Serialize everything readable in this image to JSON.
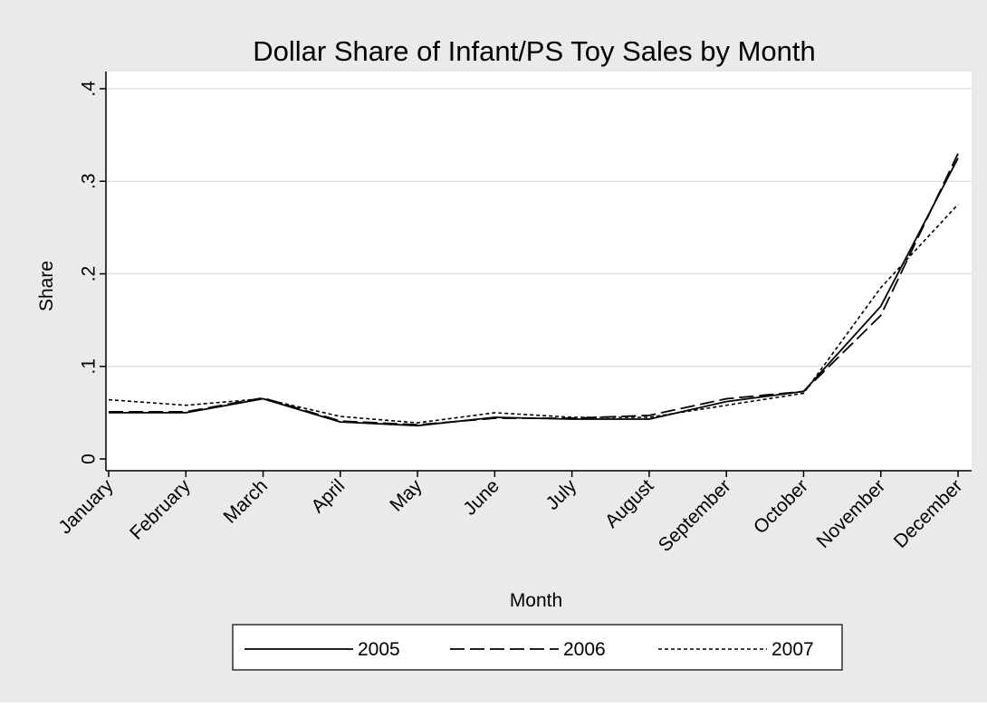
{
  "chart_data": {
    "type": "line",
    "title": "Dollar Share of Infant/PS Toy Sales by Month",
    "xlabel": "Month",
    "ylabel": "Share",
    "categories": [
      "January",
      "February",
      "March",
      "April",
      "May",
      "June",
      "July",
      "August",
      "September",
      "October",
      "November",
      "December"
    ],
    "yticks": [
      0,
      0.1,
      0.2,
      0.3,
      0.4
    ],
    "ytick_labels": [
      "0",
      ".1",
      ".2",
      ".3",
      ".4"
    ],
    "ylim": [
      0,
      0.4
    ],
    "grid": true,
    "legend_position": "bottom",
    "series": [
      {
        "name": "2005",
        "dash": "solid",
        "values": [
          0.05,
          0.05,
          0.065,
          0.04,
          0.036,
          0.045,
          0.043,
          0.043,
          0.062,
          0.073,
          0.165,
          0.325
        ]
      },
      {
        "name": "2006",
        "dash": "dashed",
        "values": [
          0.051,
          0.051,
          0.066,
          0.041,
          0.037,
          0.044,
          0.044,
          0.047,
          0.065,
          0.073,
          0.155,
          0.33
        ]
      },
      {
        "name": "2007",
        "dash": "dotted",
        "values": [
          0.064,
          0.058,
          0.065,
          0.046,
          0.039,
          0.05,
          0.045,
          0.045,
          0.058,
          0.071,
          0.185,
          0.275
        ]
      }
    ],
    "colors": {
      "outer_background": "#eaeaea",
      "plot_background": "#ffffff",
      "grid": "#e0e0e0",
      "line": "#000000"
    }
  }
}
